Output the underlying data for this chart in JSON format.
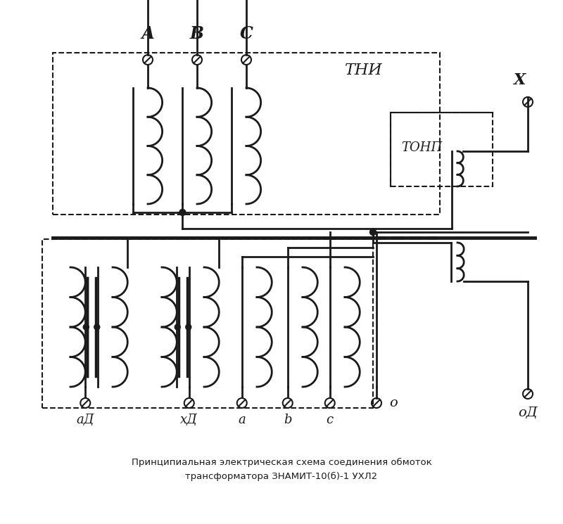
{
  "title_line1": "Принципиальная электрическая схема соединения обмоток",
  "title_line2": "трансформатора ЗНАМИТ-10(б)-1 УХЛ2",
  "bg_color": "#ffffff",
  "line_color": "#1a1a1a",
  "label_A": "А",
  "label_B": "В",
  "label_C": "С",
  "label_TNI": "ТНИ",
  "label_TONP": "ТОНП",
  "label_X": "Х",
  "label_aD": "аД",
  "label_xD": "хД",
  "label_a": "а",
  "label_b": "b",
  "label_c": "с",
  "label_o": "о",
  "label_oD": "оД"
}
